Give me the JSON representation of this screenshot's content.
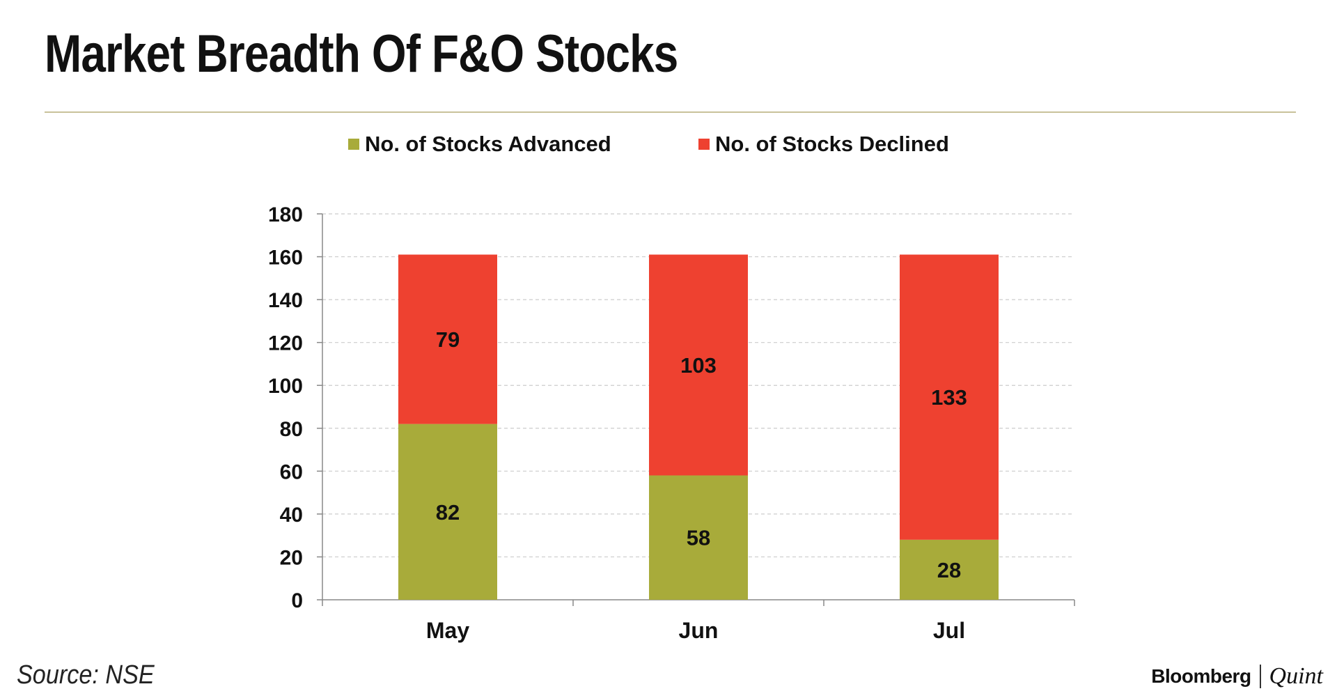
{
  "title": "Market Breadth Of F&O Stocks",
  "source": "Source: NSE",
  "brand": {
    "primary": "Bloomberg",
    "secondary": "Quint"
  },
  "colors": {
    "advanced": "#a8ab3a",
    "declined": "#ee4130",
    "rule": "#c9c29a",
    "gridline": "#cccccc",
    "axis": "#888888",
    "text": "#111111"
  },
  "chart_data": {
    "type": "bar",
    "stacked": true,
    "title": "",
    "xlabel": "",
    "ylabel": "",
    "categories": [
      "May",
      "Jun",
      "Jul"
    ],
    "series": [
      {
        "name": "No. of Stocks Advanced",
        "values": [
          82,
          58,
          28
        ],
        "color": "#a8ab3a"
      },
      {
        "name": "No. of Stocks Declined",
        "values": [
          79,
          103,
          133
        ],
        "color": "#ee4130"
      }
    ],
    "ylim": [
      0,
      180
    ],
    "yticks": [
      0,
      20,
      40,
      60,
      80,
      100,
      120,
      140,
      160,
      180
    ],
    "grid": true,
    "legend_position": "top"
  }
}
